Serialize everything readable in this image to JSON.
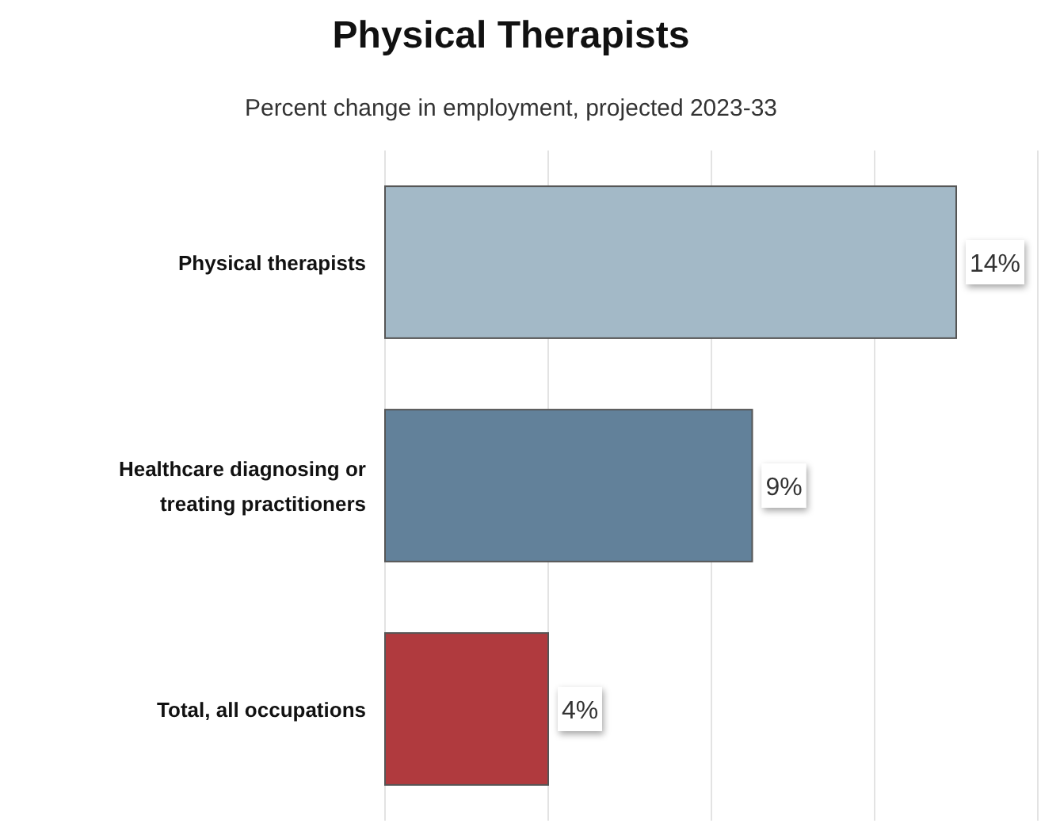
{
  "chart_data": {
    "type": "bar",
    "orientation": "horizontal",
    "title": "Physical Therapists",
    "subtitle": "Percent change in employment, projected 2023-33",
    "categories": [
      "Physical therapists",
      "Healthcare diagnosing or treating practitioners",
      "Total, all occupations"
    ],
    "values": [
      14,
      9,
      4
    ],
    "colors": [
      "#a3b9c7",
      "#62819a",
      "#b03a3e"
    ],
    "value_labels": [
      "14%",
      "9%",
      "4%"
    ],
    "xlim": [
      0,
      16
    ],
    "xticks": [
      {
        "value": 0,
        "label": null
      },
      {
        "value": 4,
        "label": null
      },
      {
        "value": 8,
        "label": null
      },
      {
        "value": 12,
        "label": null
      },
      {
        "value": 16,
        "label": null
      }
    ],
    "grid": "x",
    "tick_labels": "y"
  }
}
